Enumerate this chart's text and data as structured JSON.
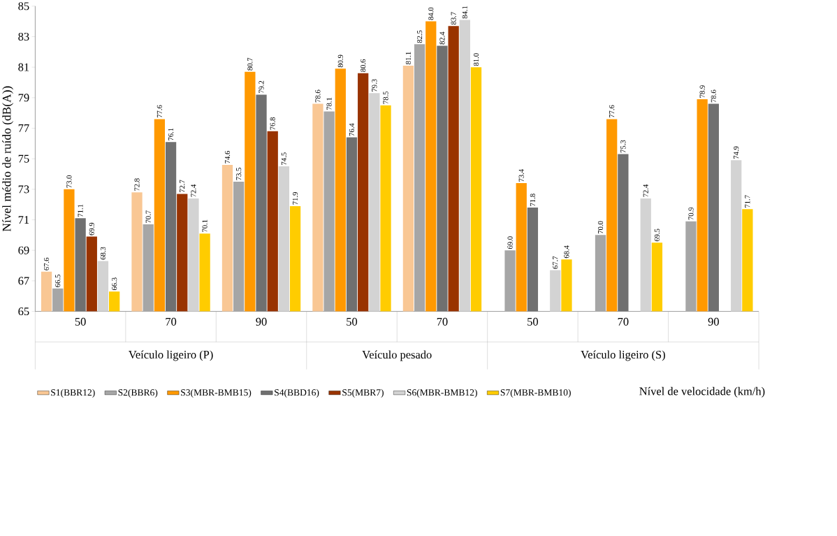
{
  "chart_data": {
    "type": "bar",
    "ylabel": "Nível médio de ruído (dB(A))",
    "categories": [
      "50",
      "70",
      "90",
      "50",
      "70",
      "50",
      "70",
      "90"
    ],
    "annotations": [
      "Veículo ligeiro (P)",
      "Veículo pesado",
      "Veículo ligeiro (S)",
      "Nível de velocidade (km/h)"
    ],
    "ylim": [
      65,
      85
    ],
    "yticks": [
      65,
      67,
      69,
      71,
      73,
      75,
      77,
      79,
      81,
      83,
      85
    ],
    "legend": "bottom",
    "series": [
      {
        "name": "S1(BBR12)",
        "color": "#f9c794",
        "values": [
          67.6,
          72.8,
          74.6,
          78.6,
          81.1,
          null,
          null,
          null
        ],
        "value_labels": [
          "67.6",
          "72.8",
          "74.6",
          "78.6",
          "81.1",
          null,
          null,
          null
        ]
      },
      {
        "name": "S2(BBR6)",
        "color": "#a6a6a6",
        "values": [
          66.5,
          70.7,
          73.5,
          78.1,
          82.5,
          69.0,
          70.0,
          70.9
        ],
        "value_labels": [
          "66.5",
          "70.7",
          "73.5",
          "78.1",
          "82.5",
          "69.0",
          "70.0",
          "70.9"
        ]
      },
      {
        "name": "S3(MBR-BMB15)",
        "color": "#ff9900",
        "values": [
          73.0,
          77.6,
          80.7,
          80.9,
          84.0,
          73.4,
          77.6,
          78.9
        ],
        "value_labels": [
          "73.0",
          "77.6",
          "80.7",
          "80.9",
          "84.0",
          "73.4",
          "77.6",
          "78.9"
        ]
      },
      {
        "name": "S4(BBD16)",
        "color": "#707070",
        "values": [
          71.1,
          76.1,
          79.2,
          76.4,
          82.4,
          71.8,
          75.3,
          78.6
        ],
        "value_labels": [
          "71.1",
          "76.1",
          "79.2",
          "76.4",
          "82.4",
          "71.8",
          "75.3",
          "78.6"
        ]
      },
      {
        "name": "S5(MBR7)",
        "color": "#993300",
        "values": [
          69.9,
          72.7,
          76.8,
          80.6,
          83.7,
          null,
          null,
          null
        ],
        "value_labels": [
          "69.9",
          "72.7",
          "76.8",
          "80.6",
          "83.7",
          null,
          null,
          null
        ]
      },
      {
        "name": "S6(MBR-BMB12)",
        "color": "#d3d3d3",
        "values": [
          68.3,
          72.4,
          74.5,
          79.3,
          84.1,
          67.7,
          72.4,
          74.9
        ],
        "value_labels": [
          "68.3",
          "72.4",
          "74.5",
          "79.3",
          "84.1",
          "67.7",
          "72.4",
          "74.9"
        ]
      },
      {
        "name": "S7(MBR-BMB10)",
        "color": "#ffcc00",
        "values": [
          66.3,
          70.1,
          71.9,
          78.5,
          81.0,
          68.4,
          69.5,
          71.7
        ],
        "value_labels": [
          "66.3",
          "70.1",
          "71.9",
          "78.5",
          "81.0",
          "68.4",
          "69.5",
          "71.7"
        ]
      }
    ]
  }
}
